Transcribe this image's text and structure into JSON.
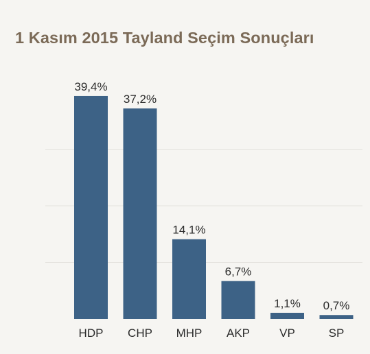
{
  "chart_data": {
    "type": "bar",
    "title": "1 Kasım 2015 Tayland Seçim Sonuçları",
    "categories": [
      "HDP",
      "CHP",
      "MHP",
      "AKP",
      "VP",
      "SP"
    ],
    "values": [
      39.4,
      37.2,
      14.1,
      6.7,
      1.1,
      0.7
    ],
    "value_labels": [
      "39,4%",
      "37,2%",
      "14,1%",
      "6,7%",
      "1,1%",
      "0,7%"
    ],
    "xlabel": "",
    "ylabel": "",
    "ylim": [
      0,
      40
    ],
    "grid": true,
    "legend": "none",
    "colors": {
      "bar": "#3d6286",
      "grid": "#e4e2dd",
      "title": "#7b6a57",
      "background": "#f6f5f2"
    }
  }
}
